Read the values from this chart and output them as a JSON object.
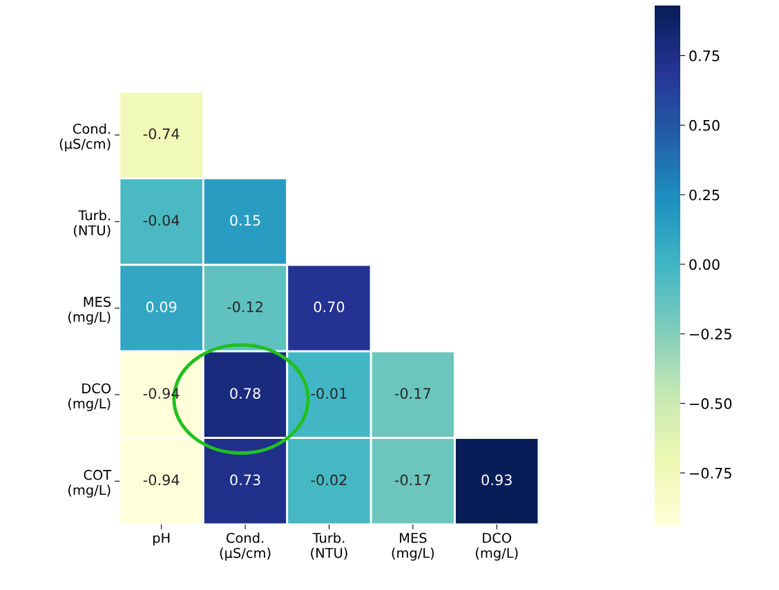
{
  "chart_data": {
    "type": "heatmap",
    "categories": [
      "pH",
      "Cond.\n(µS/cm)",
      "Turb.\n(NTU)",
      "MES\n(mg/L)",
      "DCO\n(mg/L)"
    ],
    "y_categories": [
      "Cond.\n(µS/cm)",
      "Turb.\n(NTU)",
      "MES\n(mg/L)",
      "DCO\n(mg/L)",
      "COT\n(mg/L)"
    ],
    "cells": [
      [
        -0.74,
        null,
        null,
        null,
        null
      ],
      [
        -0.04,
        0.15,
        null,
        null,
        null
      ],
      [
        0.09,
        -0.12,
        0.7,
        null,
        null
      ],
      [
        -0.94,
        0.78,
        -0.01,
        -0.17,
        null
      ],
      [
        -0.94,
        0.73,
        -0.02,
        -0.17,
        0.93
      ]
    ],
    "cell_labels": [
      [
        "-0.74",
        null,
        null,
        null,
        null
      ],
      [
        "-0.04",
        "0.15",
        null,
        null,
        null
      ],
      [
        "0.09",
        "-0.12",
        "0.70",
        null,
        null
      ],
      [
        "-0.94",
        "0.78",
        "-0.01",
        "-0.17",
        null
      ],
      [
        "-0.94",
        "0.73",
        "-0.02",
        "-0.17",
        "0.93"
      ]
    ],
    "clim": [
      -0.94,
      0.93
    ],
    "cticks": [
      {
        "value": 0.75,
        "label": "0.75"
      },
      {
        "value": 0.5,
        "label": "0.50"
      },
      {
        "value": 0.25,
        "label": "0.25"
      },
      {
        "value": 0,
        "label": "0.00"
      },
      {
        "value": -0.25,
        "label": "−0.25"
      },
      {
        "value": -0.5,
        "label": "−0.50"
      },
      {
        "value": -0.75,
        "label": "−0.75"
      }
    ]
  }
}
